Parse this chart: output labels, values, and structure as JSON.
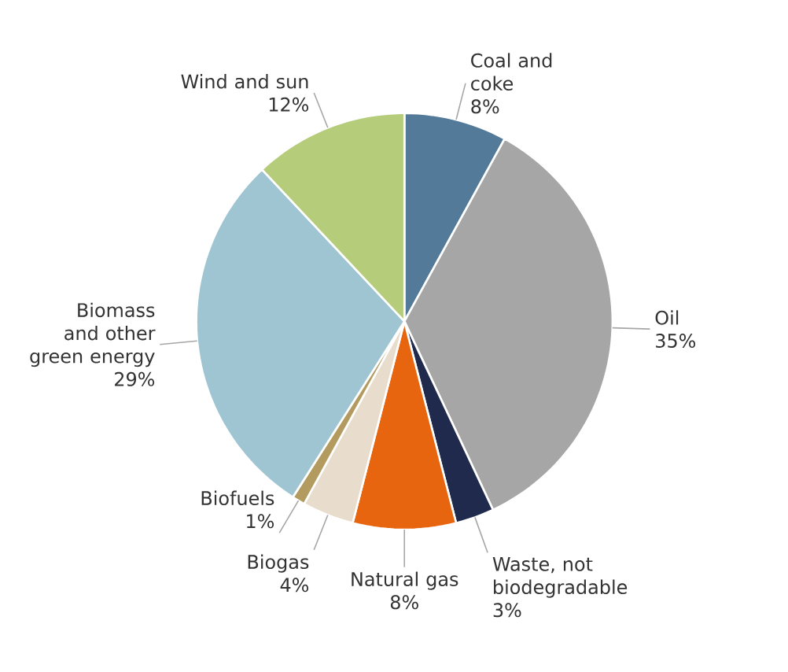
{
  "chart_data": {
    "type": "pie",
    "categories": [
      "Coal and coke",
      "Oil",
      "Waste, not biodegradable",
      "Natural gas",
      "Biogas",
      "Biofuels",
      "Biomass and other green energy",
      "Wind and sun"
    ],
    "values": [
      8,
      35,
      3,
      8,
      4,
      1,
      29,
      12
    ],
    "colors": [
      "#547a99",
      "#a6a6a6",
      "#1f2a4d",
      "#e8650f",
      "#e8ddcc",
      "#b39a5e",
      "#9fc5d3",
      "#b5cc7a"
    ],
    "legend": false,
    "value_labels": [
      "8%",
      "35%",
      "3%",
      "8%",
      "4%",
      "1%",
      "29%",
      "12%"
    ]
  }
}
